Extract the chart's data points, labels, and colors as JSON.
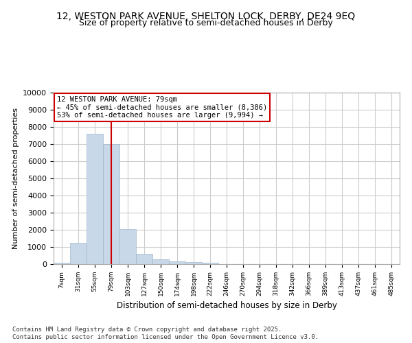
{
  "title_line1": "12, WESTON PARK AVENUE, SHELTON LOCK, DERBY, DE24 9EQ",
  "title_line2": "Size of property relative to semi-detached houses in Derby",
  "xlabel": "Distribution of semi-detached houses by size in Derby",
  "ylabel": "Number of semi-detached properties",
  "footnote1": "Contains HM Land Registry data © Crown copyright and database right 2025.",
  "footnote2": "Contains public sector information licensed under the Open Government Licence v3.0.",
  "annotation_title": "12 WESTON PARK AVENUE: 79sqm",
  "annotation_line1": "← 45% of semi-detached houses are smaller (8,386)",
  "annotation_line2": "53% of semi-detached houses are larger (9,994) →",
  "property_size_bin_index": 3,
  "bar_color": "#c8d8e8",
  "bar_edgecolor": "#a0b8cc",
  "redline_color": "#cc0000",
  "annotation_box_edgecolor": "#cc0000",
  "background_color": "#ffffff",
  "grid_color": "#cccccc",
  "bin_labels": [
    "7sqm",
    "31sqm",
    "55sqm",
    "79sqm",
    "103sqm",
    "127sqm",
    "150sqm",
    "174sqm",
    "198sqm",
    "222sqm",
    "246sqm",
    "270sqm",
    "294sqm",
    "318sqm",
    "342sqm",
    "366sqm",
    "389sqm",
    "413sqm",
    "437sqm",
    "461sqm",
    "485sqm"
  ],
  "values": [
    80,
    1250,
    7600,
    7000,
    2050,
    600,
    280,
    150,
    120,
    100,
    0,
    0,
    0,
    0,
    0,
    0,
    0,
    0,
    0,
    0,
    0
  ],
  "ylim": [
    0,
    10000
  ],
  "yticks": [
    0,
    1000,
    2000,
    3000,
    4000,
    5000,
    6000,
    7000,
    8000,
    9000,
    10000
  ]
}
